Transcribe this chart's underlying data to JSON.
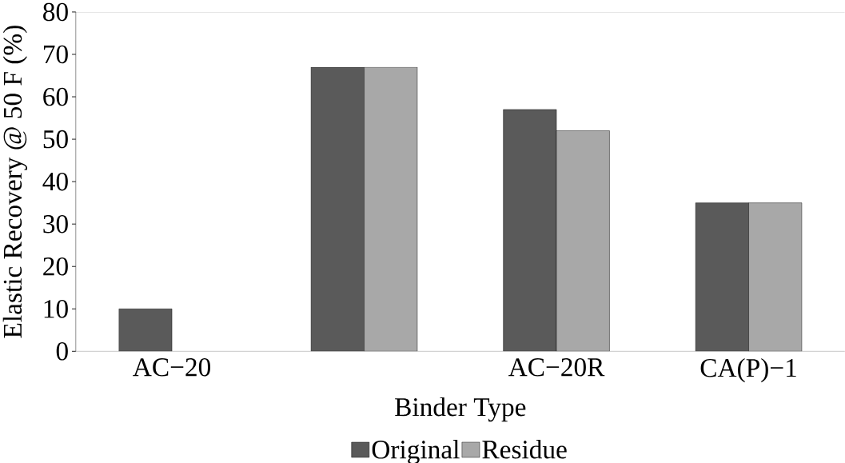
{
  "chart_data": {
    "type": "bar",
    "xlabel": "Binder Type",
    "ylabel": "Elastic Recovery @ 50 F (%)",
    "categories": [
      "AC−20",
      null,
      "AC−20R",
      "CA(P)−1"
    ],
    "series": [
      {
        "name": "Original",
        "color": "#5a5a5a",
        "values": [
          10,
          67,
          57,
          35
        ]
      },
      {
        "name": "Residue",
        "color": "#a8a8a8",
        "values": [
          null,
          67,
          52,
          35
        ]
      }
    ],
    "ylim": [
      0,
      80
    ],
    "yticks": [
      0,
      10,
      20,
      30,
      40,
      50,
      60,
      70,
      80
    ],
    "grid": false,
    "legend": "bottom"
  }
}
